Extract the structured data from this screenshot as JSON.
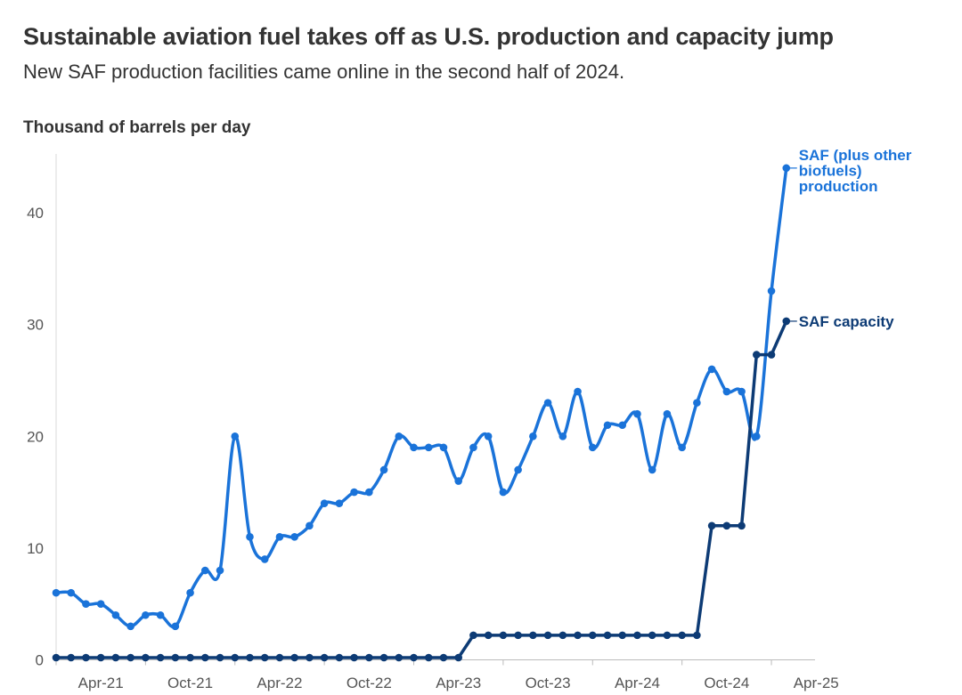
{
  "chart_data": {
    "type": "line",
    "title": "Sustainable aviation fuel takes off as U.S. production and capacity jump",
    "subtitle": "New SAF production facilities came online in the second half of 2024.",
    "ylabel": "Thousand of barrels per day",
    "xlabel": "",
    "ylim": [
      0,
      45
    ],
    "yticks": [
      0,
      10,
      20,
      30,
      40
    ],
    "x_tick_labels": [
      "Apr-21",
      "Oct-21",
      "Apr-22",
      "Oct-22",
      "Apr-23",
      "Oct-23",
      "Apr-24",
      "Oct-24",
      "Apr-25"
    ],
    "x_start": "2021-01",
    "x_end": "2024-12",
    "grid": false,
    "series": [
      {
        "name": "SAF (plus other biofuels) production",
        "name_lines": [
          "SAF (plus other",
          "biofuels)",
          "production"
        ],
        "color": "#1a73d9",
        "values": [
          6,
          6,
          5,
          5,
          4,
          3,
          4,
          4,
          3,
          6,
          8,
          8,
          20,
          11,
          9,
          11,
          11,
          12,
          14,
          14,
          15,
          15,
          17,
          20,
          19,
          19,
          19,
          16,
          19,
          20,
          15,
          17,
          20,
          23,
          20,
          24,
          19,
          21,
          21,
          22,
          17,
          22,
          19,
          23,
          26,
          24,
          24,
          20,
          33,
          44
        ]
      },
      {
        "name": "SAF capacity",
        "name_lines": [
          "SAF capacity"
        ],
        "color": "#0d3b75",
        "values": [
          0.2,
          0.2,
          0.2,
          0.2,
          0.2,
          0.2,
          0.2,
          0.2,
          0.2,
          0.2,
          0.2,
          0.2,
          0.2,
          0.2,
          0.2,
          0.2,
          0.2,
          0.2,
          0.2,
          0.2,
          0.2,
          0.2,
          0.2,
          0.2,
          0.2,
          0.2,
          0.2,
          0.2,
          2.2,
          2.2,
          2.2,
          2.2,
          2.2,
          2.2,
          2.2,
          2.2,
          2.2,
          2.2,
          2.2,
          2.2,
          2.2,
          2.2,
          2.2,
          2.2,
          12,
          12,
          12,
          27.3,
          27.3,
          30.3
        ]
      }
    ]
  }
}
